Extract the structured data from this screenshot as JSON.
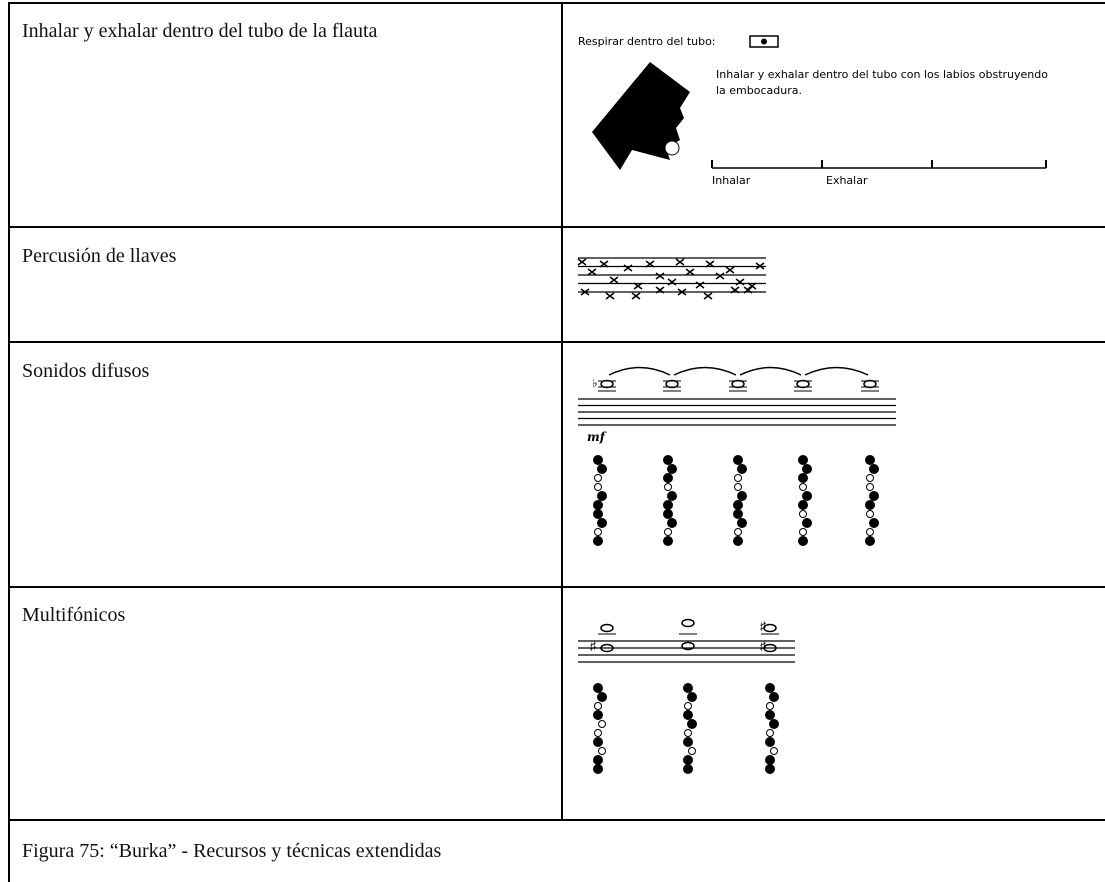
{
  "table": {
    "rows": [
      {
        "label": "Inhalar y exhalar dentro del tubo de la flauta",
        "figure": {
          "heading": "Respirar dentro del tubo:",
          "description": "Inhalar y exhalar dentro del tubo con los labios obstruyendo la embocadura.",
          "timeline_labels": [
            "Inhalar",
            "Exhalar"
          ]
        }
      },
      {
        "label": "Percusión de llaves"
      },
      {
        "label": "Sonidos difusos",
        "figure": {
          "dynamic": "mf"
        }
      },
      {
        "label": "Multifónicos"
      }
    ]
  },
  "caption": "Figura 75: “Burka” - Recursos y técnicas extendidas"
}
